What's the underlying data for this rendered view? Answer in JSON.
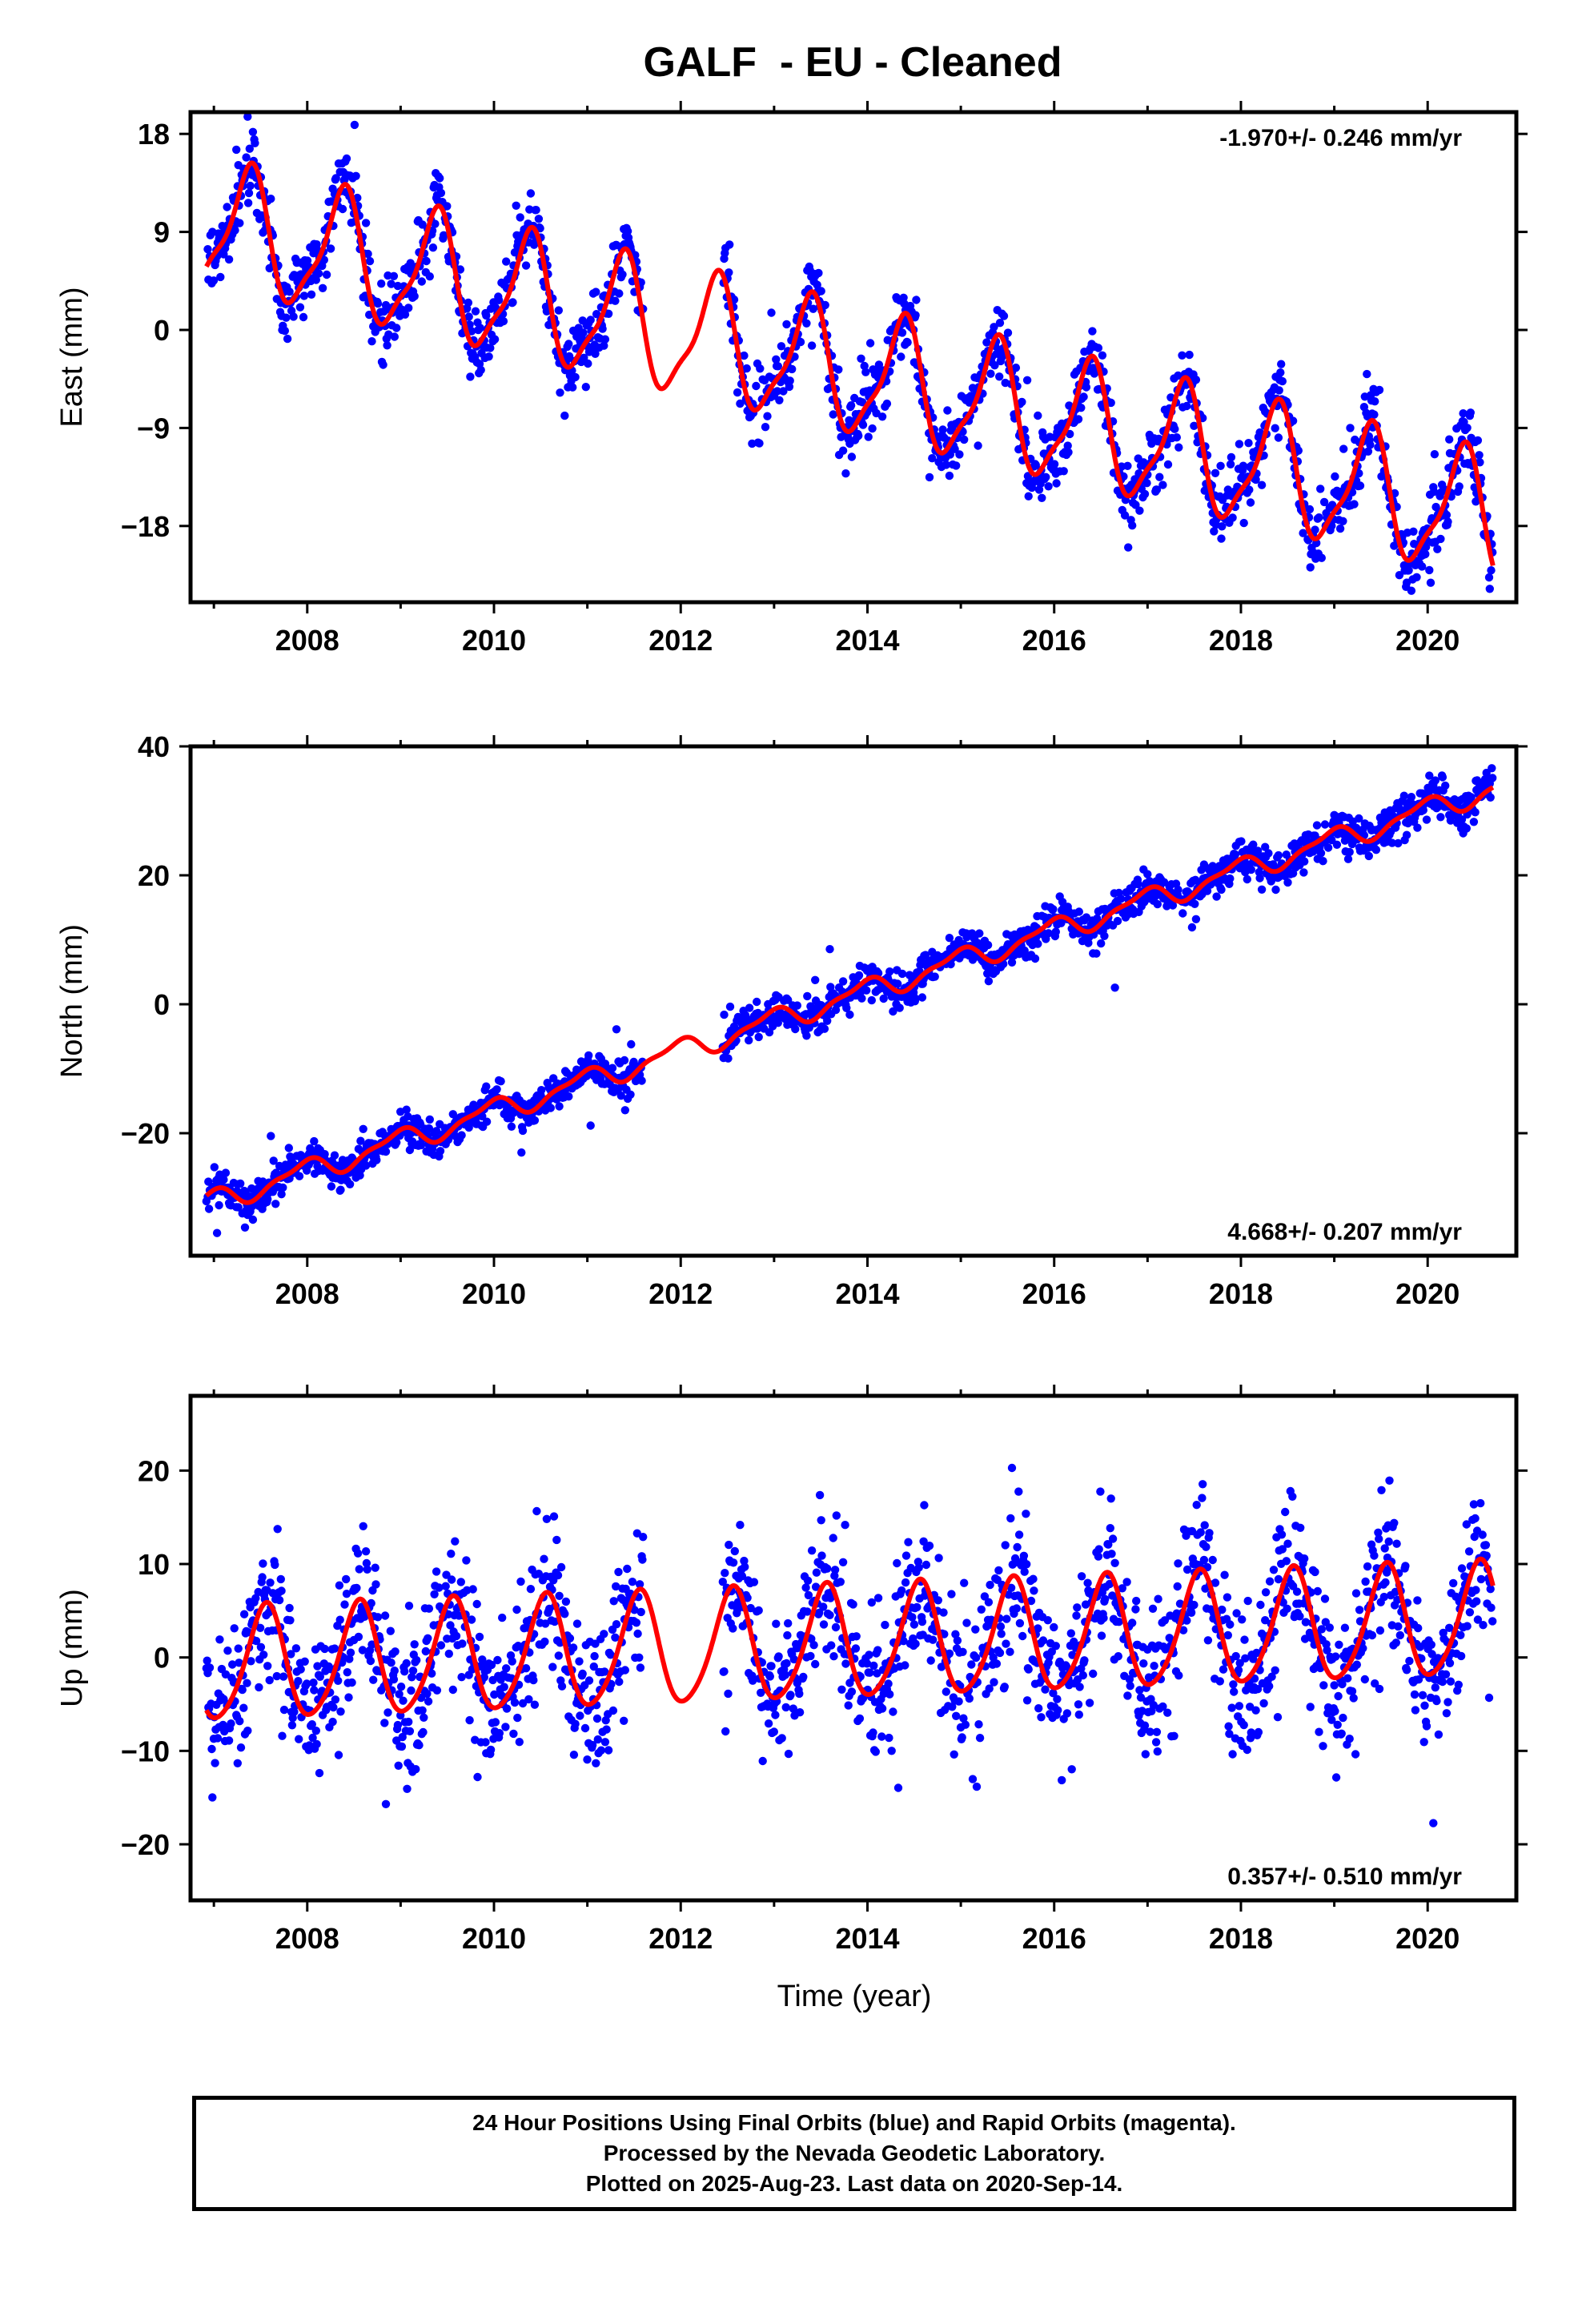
{
  "title": "GALF  - EU - Cleaned",
  "xlabel": "Time (year)",
  "caption": {
    "line1": "24 Hour Positions Using Final Orbits (blue) and Rapid Orbits (magenta).",
    "line2": "Processed by the Nevada Geodetic Laboratory.",
    "line3": "Plotted on 2025-Aug-23. Last data on 2020-Sep-14."
  },
  "colors": {
    "observations": "#0000ff",
    "model": "#ff0000",
    "frame": "#000000"
  },
  "chart_data": [
    {
      "type": "scatter",
      "name": "east",
      "ylabel": "East (mm)",
      "rate": "-1.970+/- 0.246 mm/yr",
      "rate_position": "top-right",
      "xlim": [
        2006.75,
        2020.95
      ],
      "ylim": [
        -25,
        20
      ],
      "xticks": [
        "2008",
        "2010",
        "2012",
        "2014",
        "2016",
        "2018",
        "2020"
      ],
      "yticks": [
        "18",
        "9",
        "0",
        "-9",
        "-18"
      ],
      "data_gap": [
        2011.6,
        2012.45
      ],
      "model": {
        "offset_2007": 9.5,
        "rate": -1.97,
        "annual_amplitude": 5.5,
        "annual_peak": 2007.37,
        "semiannual_amplitude": 1.5,
        "semiannual_peak": 2007.45
      },
      "noise_sd": 1.7
    },
    {
      "type": "scatter",
      "name": "north",
      "ylabel": "North (mm)",
      "rate": "4.668+/- 0.207 mm/yr",
      "rate_position": "bottom-right",
      "xlim": [
        2006.75,
        2020.95
      ],
      "ylim": [
        -39,
        40
      ],
      "xticks": [
        "2008",
        "2010",
        "2012",
        "2014",
        "2016",
        "2018",
        "2020"
      ],
      "yticks": [
        "40",
        "20",
        "0",
        "-20"
      ],
      "data_gap": [
        2011.6,
        2012.45
      ],
      "model": {
        "offset_2007": -30.5,
        "rate": 4.668,
        "annual_amplitude": 1.6,
        "annual_peak": 2006.95,
        "semiannual_amplitude": 0.6,
        "semiannual_peak": 2007.1
      },
      "noise_sd": 1.4
    },
    {
      "type": "scatter",
      "name": "up",
      "ylabel": "Up (mm)",
      "rate": "0.357+/- 0.510 mm/yr",
      "rate_position": "bottom-right",
      "xlim": [
        2006.75,
        2020.95
      ],
      "ylim": [
        -26,
        28
      ],
      "xticks": [
        "2008",
        "2010",
        "2012",
        "2014",
        "2016",
        "2018",
        "2020"
      ],
      "yticks": [
        "20",
        "10",
        "0",
        "-10",
        "-20"
      ],
      "data_gap": [
        2011.6,
        2012.45
      ],
      "model": {
        "offset_2007": -1.0,
        "rate": 0.357,
        "annual_amplitude": 6.0,
        "annual_peak": 2007.55,
        "semiannual_amplitude": 0.8,
        "semiannual_peak": 2007.6
      },
      "noise_sd": 3.8
    }
  ]
}
